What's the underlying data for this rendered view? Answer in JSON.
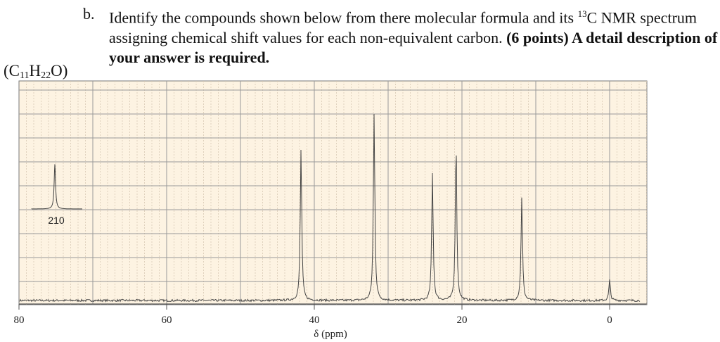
{
  "question": {
    "label": "b.",
    "text_1": "Identify the compounds shown below from there molecular formula and its ",
    "sup_13": "13",
    "text_2": "C NMR spectrum assigning chemical shift values for each non-equivalent carbon. ",
    "bold_text": "(6 points) A detail description of your answer is required."
  },
  "formula": {
    "open": "(C",
    "c_count": "11",
    "h": "H",
    "h_count": "22",
    "close": "O)"
  },
  "chart_data": {
    "type": "line",
    "title": "",
    "xlabel": "δ (ppm)",
    "ylabel": "",
    "xlim": [
      80,
      -5
    ],
    "x_reversed": true,
    "xticks": [
      80,
      60,
      40,
      20,
      0
    ],
    "grid": true,
    "background_color": "#fdf3e2",
    "line_color": "#444444",
    "peaks": [
      {
        "ppm": 41.8,
        "relative_intensity": 81
      },
      {
        "ppm": 31.9,
        "relative_intensity": 100
      },
      {
        "ppm": 24.0,
        "relative_intensity": 68
      },
      {
        "ppm": 20.8,
        "relative_intensity": 85
      },
      {
        "ppm": 11.9,
        "relative_intensity": 55
      },
      {
        "ppm": 0.0,
        "relative_intensity": 11
      }
    ],
    "inset": {
      "label": "210",
      "ppm": 210,
      "relative_intensity": 24
    }
  }
}
